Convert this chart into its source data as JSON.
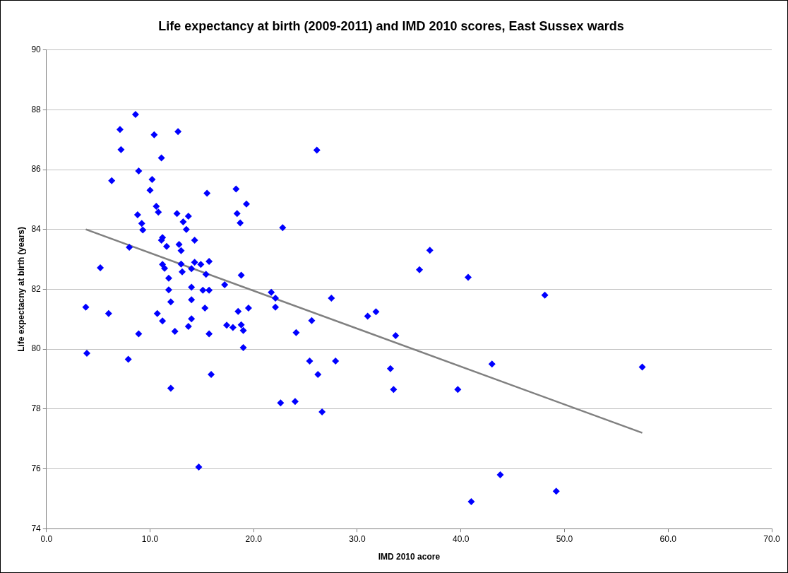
{
  "chart_data": {
    "type": "scatter",
    "title": "Life expectancy at birth (2009-2011) and IMD 2010 scores, East Sussex wards",
    "xlabel": "IMD 2010 acore",
    "ylabel": "Life expectacny at birth (years)",
    "xlim": [
      0,
      70
    ],
    "xticks": [
      {
        "value": 0,
        "label": "0.0"
      },
      {
        "value": 10,
        "label": "10.0"
      },
      {
        "value": 20,
        "label": "20.0"
      },
      {
        "value": 30,
        "label": "30.0"
      },
      {
        "value": 40,
        "label": "40.0"
      },
      {
        "value": 50,
        "label": "50.0"
      },
      {
        "value": 60,
        "label": "60.0"
      },
      {
        "value": 70,
        "label": "70.0"
      }
    ],
    "ylim": [
      74,
      90
    ],
    "yticks": [
      74,
      76,
      78,
      80,
      82,
      84,
      86,
      88,
      90
    ],
    "grid": "y",
    "legend": false,
    "series": [
      {
        "color": "#0000ff",
        "marker": "diamond",
        "x": [
          8.6,
          7.1,
          10.4,
          7.2,
          11.1,
          8.9,
          6.3,
          10.2,
          10.0,
          10.6,
          10.8,
          8.8,
          9.2,
          9.3,
          11.2,
          11.1,
          11.6,
          8.0,
          5.2,
          11.2,
          11.4,
          11.8,
          11.8,
          12.0,
          3.8,
          6.0,
          10.7,
          11.2,
          8.9,
          3.9,
          7.9,
          12.0,
          12.7,
          15.5,
          18.3,
          19.3,
          12.6,
          13.7,
          13.2,
          13.5,
          18.4,
          18.7,
          14.3,
          12.8,
          13.0,
          15.7,
          14.3,
          14.9,
          13.0,
          14.0,
          13.1,
          15.4,
          18.8,
          17.2,
          14.0,
          15.1,
          15.7,
          14.0,
          15.3,
          18.5,
          19.5,
          14.0,
          13.7,
          12.4,
          15.7,
          17.4,
          18.0,
          18.8,
          19.0,
          19.0,
          15.9,
          14.7,
          22.8,
          21.7,
          22.1,
          22.1,
          24.1,
          22.6,
          24.0,
          25.6,
          25.4,
          26.2,
          26.6,
          26.1,
          27.5,
          27.9,
          31.0,
          31.8,
          33.2,
          33.5,
          33.7,
          36.0,
          37.0,
          40.7,
          39.7,
          43.0,
          43.8,
          41.0,
          48.1,
          49.2,
          57.5
        ],
        "values": [
          87.84,
          87.34,
          87.16,
          86.67,
          86.39,
          85.95,
          85.63,
          85.67,
          85.31,
          84.77,
          84.58,
          84.49,
          84.2,
          83.98,
          83.73,
          83.64,
          83.43,
          83.4,
          82.72,
          82.83,
          82.7,
          82.37,
          81.98,
          81.58,
          81.4,
          81.19,
          81.19,
          80.94,
          80.51,
          79.86,
          79.66,
          78.69,
          87.27,
          85.21,
          85.35,
          84.85,
          84.53,
          84.44,
          84.25,
          84.0,
          84.53,
          84.22,
          83.64,
          83.5,
          83.29,
          82.93,
          82.9,
          82.83,
          82.84,
          82.69,
          82.58,
          82.5,
          82.47,
          82.15,
          82.07,
          81.97,
          81.97,
          81.65,
          81.37,
          81.26,
          81.37,
          81.01,
          80.76,
          80.59,
          80.51,
          80.8,
          80.72,
          80.81,
          80.62,
          80.05,
          79.15,
          76.06,
          84.06,
          81.9,
          81.7,
          81.4,
          80.55,
          78.2,
          78.25,
          80.95,
          79.6,
          79.15,
          77.9,
          86.65,
          81.7,
          79.6,
          81.1,
          81.25,
          79.35,
          78.65,
          80.45,
          82.65,
          83.3,
          82.4,
          78.65,
          79.5,
          75.8,
          74.9,
          81.8,
          75.25,
          79.4
        ]
      },
      {
        "type": "line",
        "marker": "none",
        "color": "#808080",
        "x": [
          3.8,
          57.5
        ],
        "values": [
          84.0,
          77.2
        ]
      }
    ]
  }
}
